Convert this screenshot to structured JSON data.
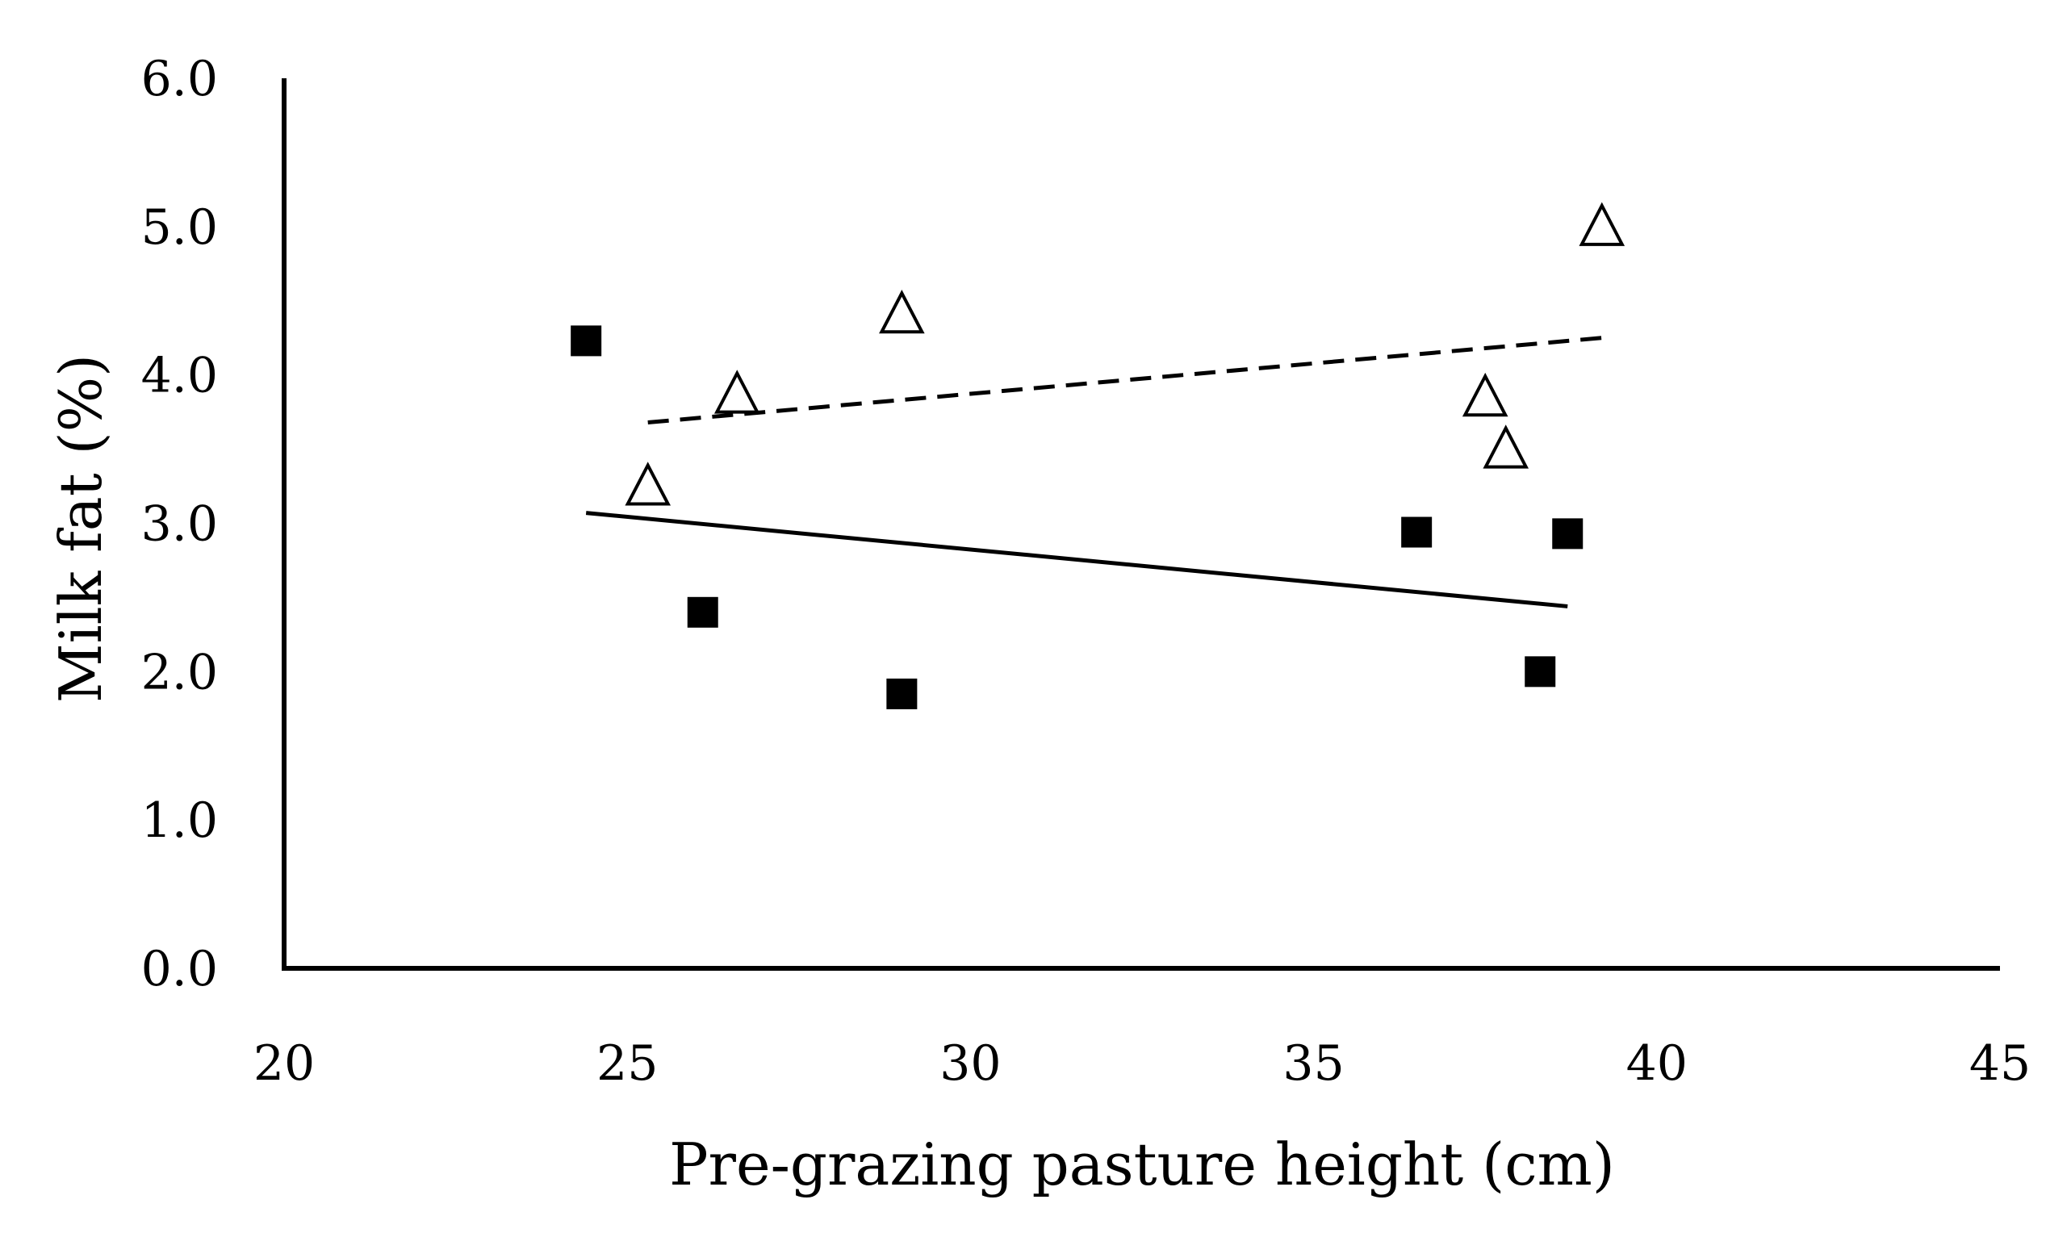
{
  "chart_data": {
    "type": "scatter",
    "title": "",
    "xlabel": "Pre-grazing pasture height (cm)",
    "ylabel": "Milk fat (%)",
    "xlim": [
      20,
      45
    ],
    "ylim": [
      0,
      6
    ],
    "grid": false,
    "x_ticks": [
      20,
      25,
      30,
      35,
      40,
      45
    ],
    "x_tick_labels": [
      "20",
      "25",
      "30",
      "35",
      "40",
      "45"
    ],
    "y_ticks": [
      0,
      1,
      2,
      3,
      4,
      5,
      6
    ],
    "y_tick_labels": [
      "0.0",
      "1.0",
      "2.0",
      "3.0",
      "4.0",
      "5.0",
      "6.0"
    ],
    "series": [
      {
        "name": "squares",
        "marker": "filled-square",
        "color": "#000000",
        "points": [
          {
            "x": 24.4,
            "y": 4.23
          },
          {
            "x": 26.1,
            "y": 2.4
          },
          {
            "x": 29.0,
            "y": 1.85
          },
          {
            "x": 36.5,
            "y": 2.94
          },
          {
            "x": 38.7,
            "y": 2.93
          },
          {
            "x": 38.3,
            "y": 2.0
          }
        ],
        "trendline": {
          "style": "solid",
          "x": [
            24.4,
            38.7
          ],
          "y": [
            3.07,
            2.44
          ]
        }
      },
      {
        "name": "triangles",
        "marker": "open-triangle",
        "color": "#000000",
        "points": [
          {
            "x": 25.3,
            "y": 3.25
          },
          {
            "x": 26.6,
            "y": 3.87
          },
          {
            "x": 29.0,
            "y": 4.41
          },
          {
            "x": 37.5,
            "y": 3.85
          },
          {
            "x": 37.8,
            "y": 3.5
          },
          {
            "x": 39.2,
            "y": 5.0
          }
        ],
        "trendline": {
          "style": "dashed",
          "x": [
            25.3,
            39.2
          ],
          "y": [
            3.68,
            4.25
          ]
        }
      }
    ]
  }
}
